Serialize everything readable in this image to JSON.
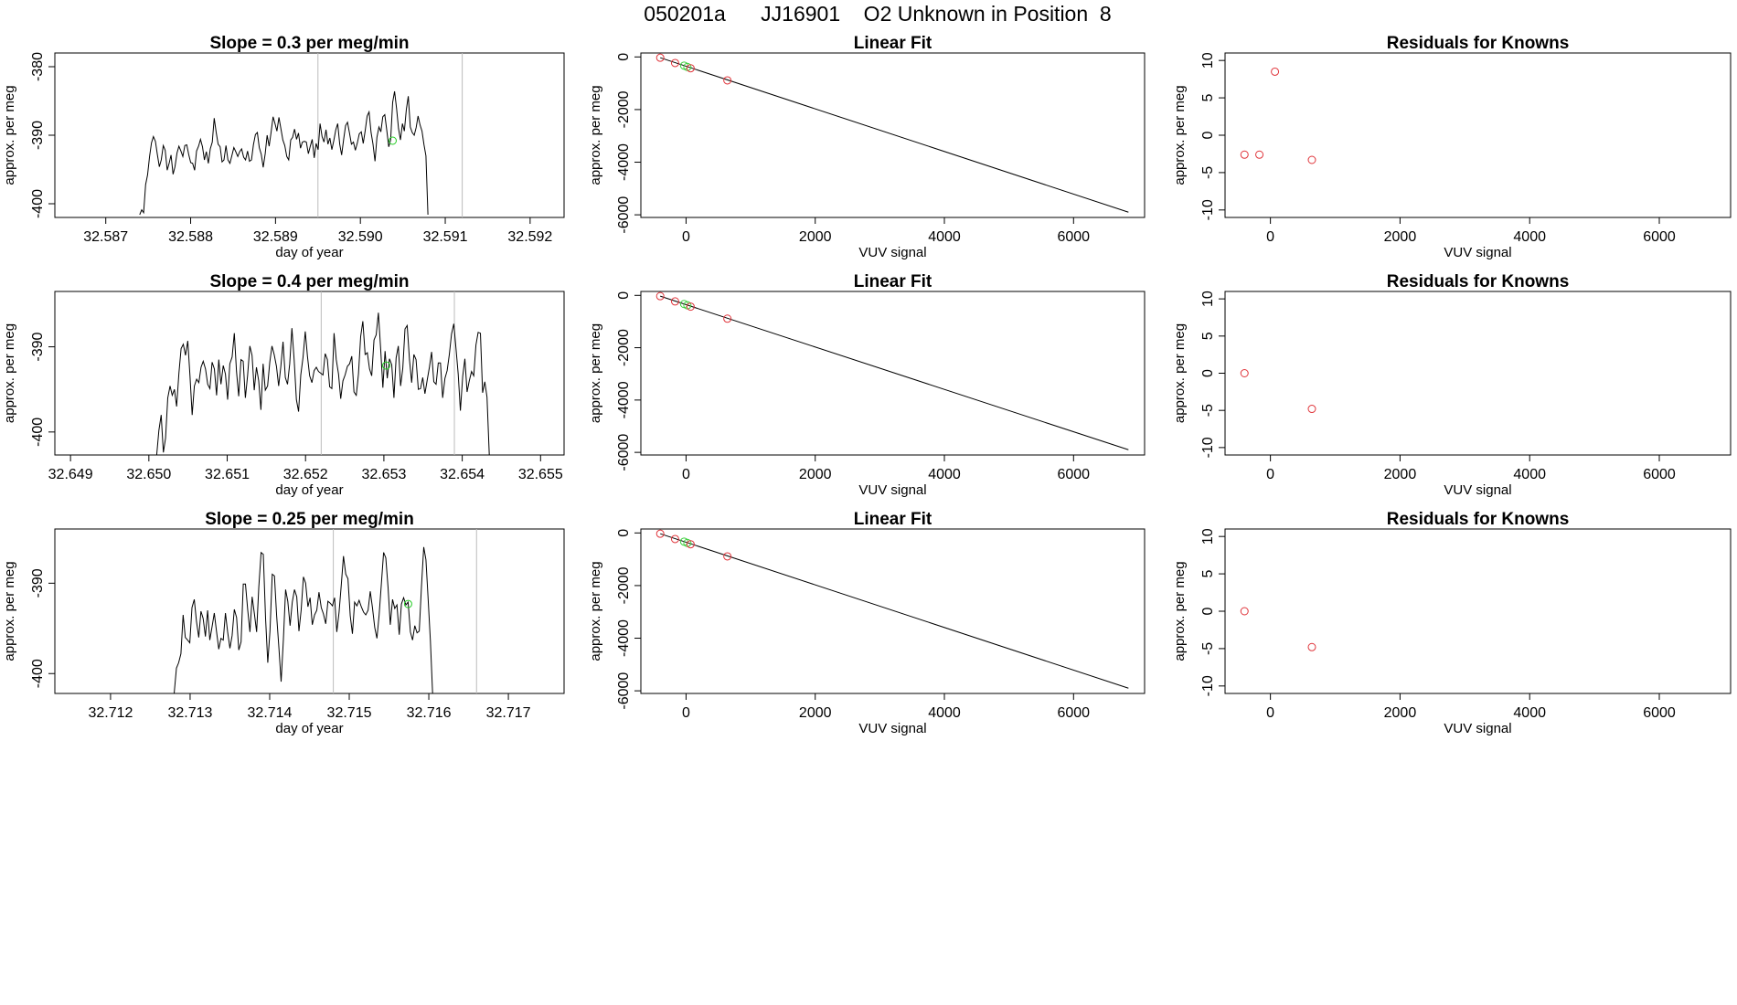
{
  "page": {
    "title": "050201a      JJ16901    O2 Unknown in Position  8"
  },
  "chart_data": [
    {
      "type": "line",
      "title": "Slope =  0.3  per meg/min",
      "xlabel": "day of year",
      "ylabel": "approx. per meg",
      "xlim": [
        32.5864,
        32.5924
      ],
      "ylim": [
        -402,
        -378
      ],
      "xticks": [
        "32.587",
        "32.588",
        "32.589",
        "32.590",
        "32.591",
        "32.592"
      ],
      "yticks": [
        "-380",
        "-390",
        "-400"
      ],
      "vlines": [
        32.5895,
        32.5912
      ],
      "x_start": 32.5874,
      "x_step": 2.31e-05,
      "values": [
        -401.6,
        -400.9,
        -401.3,
        -397.2,
        -395.8,
        -393.1,
        -391.1,
        -390.2,
        -390.9,
        -392.8,
        -394.6,
        -393.6,
        -391.5,
        -392.2,
        -395.1,
        -394.1,
        -392.9,
        -395.7,
        -394.6,
        -392.6,
        -391.6,
        -392.3,
        -393.1,
        -391.5,
        -391.4,
        -392.8,
        -394.0,
        -394.1,
        -395.1,
        -392.3,
        -391.6,
        -390.6,
        -391.7,
        -393.6,
        -392.4,
        -394.1,
        -392.0,
        -391.0,
        -387.5,
        -389.6,
        -391.3,
        -391.7,
        -393.9,
        -393.6,
        -391.5,
        -393.6,
        -394.1,
        -393.0,
        -391.8,
        -392.4,
        -393.1,
        -392.4,
        -392.0,
        -393.2,
        -393.6,
        -392.3,
        -393.8,
        -393.6,
        -391.4,
        -389.9,
        -389.6,
        -391.8,
        -392.8,
        -394.7,
        -392.7,
        -390.0,
        -391.6,
        -389.6,
        -387.3,
        -388.3,
        -389.4,
        -387.4,
        -389.0,
        -390.7,
        -391.5,
        -393.1,
        -393.6,
        -390.7,
        -390.3,
        -389.1,
        -390.6,
        -389.7,
        -391.9,
        -391.0,
        -390.9,
        -391.0,
        -392.7,
        -391.6,
        -390.6,
        -393.3,
        -391.2,
        -392.1,
        -388.3,
        -390.2,
        -391.0,
        -389.2,
        -391.3,
        -390.4,
        -392.1,
        -390.8,
        -389.2,
        -388.3,
        -391.3,
        -392.9,
        -390.6,
        -388.6,
        -388.1,
        -389.7,
        -391.3,
        -391.0,
        -392.2,
        -391.1,
        -389.8,
        -389.5,
        -391.2,
        -389.4,
        -387.2,
        -386.6,
        -389.6,
        -391.3,
        -393.8,
        -390.3,
        -388.8,
        -389.5,
        -387.3,
        -387.0,
        -389.2,
        -391.7,
        -390.7,
        -385.2,
        -383.6,
        -386.1,
        -389.0,
        -390.7,
        -388.3,
        -389.4,
        -386.2,
        -384.3,
        -388.8,
        -389.6,
        -390.0,
        -388.9,
        -387.2,
        -388.5,
        -389.4,
        -391.4,
        -393.0,
        -401.6
      ],
      "markers": [
        {
          "x": 32.59038,
          "y": -390.8,
          "color": "#22cc22"
        }
      ]
    },
    {
      "type": "scatter",
      "title": "Linear Fit",
      "xlabel": "VUV signal",
      "ylabel": "approx. per meg",
      "xlim": [
        -700,
        7100
      ],
      "ylim": [
        -6100,
        150
      ],
      "xticks": [
        "0",
        "2000",
        "4000",
        "6000"
      ],
      "yticks": [
        "0",
        "-2000",
        "-4000",
        "-6000"
      ],
      "fit_line": {
        "x": [
          -400,
          6850
        ],
        "y": [
          -30,
          -5900
        ]
      },
      "points": [
        {
          "x": -400,
          "y": -30,
          "color": "#e0343a"
        },
        {
          "x": -170,
          "y": -230,
          "color": "#e0343a"
        },
        {
          "x": -30,
          "y": -330,
          "color": "#3fcf3f"
        },
        {
          "x": 20,
          "y": -380,
          "color": "#3fcf3f"
        },
        {
          "x": 70,
          "y": -430,
          "color": "#e0343a"
        },
        {
          "x": 640,
          "y": -890,
          "color": "#e0343a"
        }
      ]
    },
    {
      "type": "scatter",
      "title": "Residuals for Knowns",
      "xlabel": "VUV signal",
      "ylabel": "approx. per meg",
      "xlim": [
        -700,
        7100
      ],
      "ylim": [
        -11,
        11
      ],
      "xticks": [
        "0",
        "2000",
        "4000",
        "6000"
      ],
      "yticks": [
        "10",
        "5",
        "0",
        "-5",
        "-10"
      ],
      "points": [
        {
          "x": -400,
          "y": -2.6,
          "color": "#e0343a"
        },
        {
          "x": -170,
          "y": -2.6,
          "color": "#e0343a"
        },
        {
          "x": 70,
          "y": 8.5,
          "color": "#e0343a"
        },
        {
          "x": 640,
          "y": -3.3,
          "color": "#e0343a"
        }
      ]
    },
    {
      "type": "line",
      "title": "Slope =  0.4  per meg/min",
      "xlabel": "day of year",
      "ylabel": "approx. per meg",
      "xlim": [
        32.6488,
        32.6553
      ],
      "ylim": [
        -402.7,
        -383.5
      ],
      "xticks": [
        "32.649",
        "32.650",
        "32.651",
        "32.652",
        "32.653",
        "32.654",
        "32.655"
      ],
      "yticks": [
        "-390",
        "-400"
      ],
      "vlines": [
        32.6522,
        32.6539
      ],
      "x_start": 32.6501,
      "x_step": 2.83e-05,
      "values": [
        -402.7,
        -399.8,
        -398.0,
        -402.4,
        -400.7,
        -396.0,
        -394.6,
        -395.7,
        -395.0,
        -397.0,
        -393.1,
        -390.2,
        -389.7,
        -391.0,
        -389.3,
        -393.4,
        -398.0,
        -394.6,
        -393.8,
        -394.2,
        -392.4,
        -391.7,
        -392.6,
        -394.4,
        -394.9,
        -391.8,
        -392.6,
        -395.7,
        -391.5,
        -394.4,
        -392.2,
        -393.2,
        -396.2,
        -392.0,
        -391.2,
        -388.4,
        -392.9,
        -395.8,
        -391.5,
        -391.7,
        -396.0,
        -393.4,
        -389.9,
        -391.0,
        -395.1,
        -392.4,
        -394.0,
        -397.4,
        -392.0,
        -395.1,
        -394.6,
        -391.8,
        -389.9,
        -390.9,
        -392.3,
        -394.6,
        -392.3,
        -389.4,
        -393.6,
        -394.4,
        -392.0,
        -387.8,
        -391.6,
        -396.2,
        -397.6,
        -393.3,
        -391.2,
        -388.2,
        -391.1,
        -393.4,
        -394.2,
        -392.8,
        -392.4,
        -392.9,
        -393.1,
        -393.3,
        -390.8,
        -391.5,
        -394.7,
        -394.9,
        -388.4,
        -391.5,
        -393.2,
        -396.1,
        -394.0,
        -393.3,
        -392.3,
        -392.0,
        -391.1,
        -395.3,
        -395.7,
        -393.2,
        -388.8,
        -387.0,
        -390.9,
        -390.7,
        -392.6,
        -393.4,
        -389.2,
        -388.6,
        -386.0,
        -390.1,
        -394.8,
        -390.5,
        -393.7,
        -391.4,
        -392.1,
        -396.0,
        -391.3,
        -389.9,
        -394.6,
        -392.5,
        -387.9,
        -387.5,
        -391.5,
        -394.2,
        -390.9,
        -391.5,
        -395.0,
        -394.9,
        -393.6,
        -395.5,
        -393.9,
        -392.4,
        -390.6,
        -394.1,
        -394.4,
        -391.9,
        -391.9,
        -396.0,
        -393.7,
        -392.8,
        -390.9,
        -388.5,
        -387.3,
        -390.2,
        -393.2,
        -397.5,
        -393.5,
        -391.4,
        -395.3,
        -394.0,
        -392.9,
        -393.4,
        -389.8,
        -388.3,
        -388.4,
        -395.4,
        -394.1,
        -395.9,
        -402.7
      ],
      "markers": [
        {
          "x": 32.65303,
          "y": -392.2,
          "color": "#22cc22"
        }
      ]
    },
    {
      "type": "scatter",
      "title": "Linear Fit",
      "xlabel": "VUV signal",
      "ylabel": "approx. per meg",
      "xlim": [
        -700,
        7100
      ],
      "ylim": [
        -6100,
        150
      ],
      "xticks": [
        "0",
        "2000",
        "4000",
        "6000"
      ],
      "yticks": [
        "0",
        "-2000",
        "-4000",
        "-6000"
      ],
      "fit_line": {
        "x": [
          -400,
          6850
        ],
        "y": [
          -30,
          -5900
        ]
      },
      "points": [
        {
          "x": -400,
          "y": -30,
          "color": "#e0343a"
        },
        {
          "x": -170,
          "y": -230,
          "color": "#e0343a"
        },
        {
          "x": -30,
          "y": -330,
          "color": "#3fcf3f"
        },
        {
          "x": 20,
          "y": -380,
          "color": "#3fcf3f"
        },
        {
          "x": 70,
          "y": -430,
          "color": "#e0343a"
        },
        {
          "x": 640,
          "y": -890,
          "color": "#e0343a"
        }
      ]
    },
    {
      "type": "scatter",
      "title": "Residuals for Knowns",
      "xlabel": "VUV signal",
      "ylabel": "approx. per meg",
      "xlim": [
        -700,
        7100
      ],
      "ylim": [
        -11,
        11
      ],
      "xticks": [
        "0",
        "2000",
        "4000",
        "6000"
      ],
      "yticks": [
        "10",
        "5",
        "0",
        "-5",
        "-10"
      ],
      "points": [
        {
          "x": -400,
          "y": 0.0,
          "color": "#e0343a"
        },
        {
          "x": 640,
          "y": -4.8,
          "color": "#e0343a"
        }
      ]
    },
    {
      "type": "line",
      "title": "Slope =  0.25  per meg/min",
      "xlabel": "day of year",
      "ylabel": "approx. per meg",
      "xlim": [
        32.7113,
        32.7177
      ],
      "ylim": [
        -402.2,
        -384
      ],
      "xticks": [
        "32.712",
        "32.713",
        "32.714",
        "32.715",
        "32.716",
        "32.717"
      ],
      "yticks": [
        "-390",
        "-400"
      ],
      "vlines": [
        32.7148,
        32.7166
      ],
      "x_start": 32.7128,
      "x_step": 2.8e-05,
      "values": [
        -402.2,
        -399.4,
        -398.8,
        -397.8,
        -393.5,
        -396.0,
        -396.3,
        -396.6,
        -392.7,
        -391.8,
        -394.2,
        -396.0,
        -393.1,
        -393.9,
        -395.9,
        -393.0,
        -396.3,
        -394.8,
        -393.3,
        -395.3,
        -397.3,
        -396.1,
        -396.3,
        -393.3,
        -395.4,
        -397.2,
        -395.8,
        -392.9,
        -393.8,
        -397.4,
        -396.5,
        -390.1,
        -390.1,
        -393.0,
        -395.4,
        -391.5,
        -393.4,
        -395.4,
        -390.4,
        -386.6,
        -386.8,
        -393.9,
        -398.8,
        -395.3,
        -389.0,
        -389.2,
        -393.6,
        -397.2,
        -400.9,
        -396.2,
        -390.7,
        -392.0,
        -394.7,
        -392.1,
        -390.7,
        -391.5,
        -395.3,
        -393.0,
        -389.3,
        -390.0,
        -392.6,
        -391.6,
        -394.6,
        -393.5,
        -393.0,
        -391.0,
        -392.7,
        -393.4,
        -394.5,
        -392.0,
        -392.2,
        -392.5,
        -391.6,
        -395.4,
        -393.2,
        -390.2,
        -387.0,
        -389.0,
        -389.5,
        -393.6,
        -395.6,
        -392.1,
        -392.5,
        -391.9,
        -392.6,
        -393.2,
        -393.5,
        -393.0,
        -390.9,
        -392.7,
        -394.9,
        -396.1,
        -393.5,
        -390.0,
        -386.6,
        -387.2,
        -390.5,
        -394.6,
        -391.8,
        -392.8,
        -392.4,
        -395.7,
        -392.3,
        -391.6,
        -392.4,
        -392.1,
        -395.4,
        -396.3,
        -394.7,
        -395.5,
        -395.3,
        -390.4,
        -386.0,
        -387.4,
        -391.9,
        -396.4,
        -402.2
      ],
      "markers": [
        {
          "x": 32.71574,
          "y": -392.3,
          "color": "#22cc22"
        }
      ]
    },
    {
      "type": "scatter",
      "title": "Linear Fit",
      "xlabel": "VUV signal",
      "ylabel": "approx. per meg",
      "xlim": [
        -700,
        7100
      ],
      "ylim": [
        -6100,
        150
      ],
      "xticks": [
        "0",
        "2000",
        "4000",
        "6000"
      ],
      "yticks": [
        "0",
        "-2000",
        "-4000",
        "-6000"
      ],
      "fit_line": {
        "x": [
          -400,
          6850
        ],
        "y": [
          -30,
          -5900
        ]
      },
      "points": [
        {
          "x": -400,
          "y": -30,
          "color": "#e0343a"
        },
        {
          "x": -170,
          "y": -230,
          "color": "#e0343a"
        },
        {
          "x": -30,
          "y": -330,
          "color": "#3fcf3f"
        },
        {
          "x": 20,
          "y": -380,
          "color": "#3fcf3f"
        },
        {
          "x": 70,
          "y": -430,
          "color": "#e0343a"
        },
        {
          "x": 640,
          "y": -890,
          "color": "#e0343a"
        }
      ]
    },
    {
      "type": "scatter",
      "title": "Residuals for Knowns",
      "xlabel": "VUV signal",
      "ylabel": "approx. per meg",
      "xlim": [
        -700,
        7100
      ],
      "ylim": [
        -11,
        11
      ],
      "xticks": [
        "0",
        "2000",
        "4000",
        "6000"
      ],
      "yticks": [
        "10",
        "5",
        "0",
        "-5",
        "-10"
      ],
      "points": [
        {
          "x": -400,
          "y": 0.0,
          "color": "#e0343a"
        },
        {
          "x": 640,
          "y": -4.8,
          "color": "#e0343a"
        }
      ]
    }
  ]
}
